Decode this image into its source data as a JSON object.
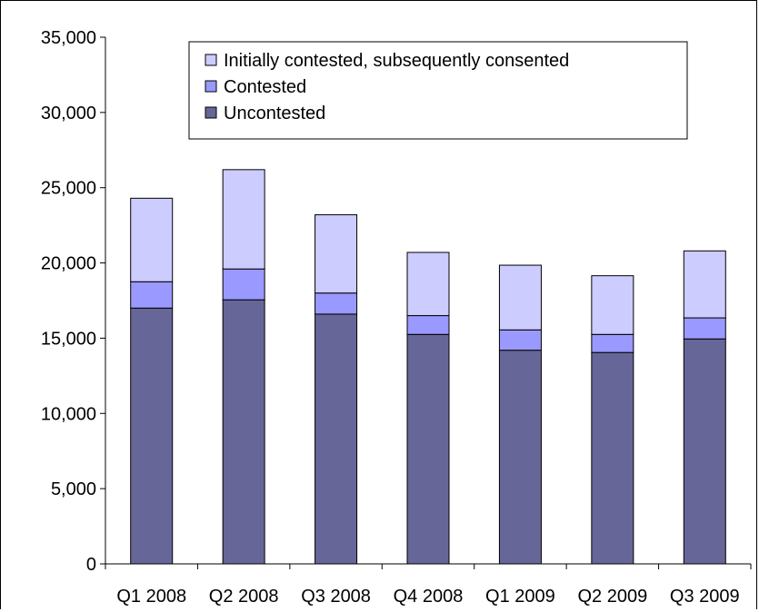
{
  "chart_data": {
    "type": "bar",
    "stacked": true,
    "categories": [
      "Q1 2008",
      "Q2 2008",
      "Q3 2008",
      "Q4 2008",
      "Q1 2009",
      "Q2 2009",
      "Q3 2009"
    ],
    "series": [
      {
        "name": "Uncontested",
        "color": "#666699",
        "values": [
          17000,
          17550,
          16600,
          15250,
          14200,
          14050,
          14950
        ]
      },
      {
        "name": "Contested",
        "color": "#9999ff",
        "values": [
          1750,
          2050,
          1400,
          1250,
          1350,
          1200,
          1400
        ]
      },
      {
        "name": "Initially contested, subsequently consented",
        "color": "#ccccff",
        "values": [
          5550,
          6600,
          5200,
          4200,
          4300,
          3900,
          4450
        ]
      }
    ],
    "legend_order": [
      "Initially contested, subsequently consented",
      "Contested",
      "Uncontested"
    ],
    "ylim": [
      0,
      35000
    ],
    "yticks": [
      {
        "value": 0,
        "label": "0"
      },
      {
        "value": 5000,
        "label": "5,000"
      },
      {
        "value": 10000,
        "label": "10,000"
      },
      {
        "value": 15000,
        "label": "15,000"
      },
      {
        "value": 20000,
        "label": "20,000"
      },
      {
        "value": 25000,
        "label": "25,000"
      },
      {
        "value": 30000,
        "label": "30,000"
      },
      {
        "value": 35000,
        "label": "35,000"
      }
    ],
    "title": "",
    "xlabel": "",
    "ylabel": "",
    "grid": false,
    "legend_position": "top-center"
  }
}
